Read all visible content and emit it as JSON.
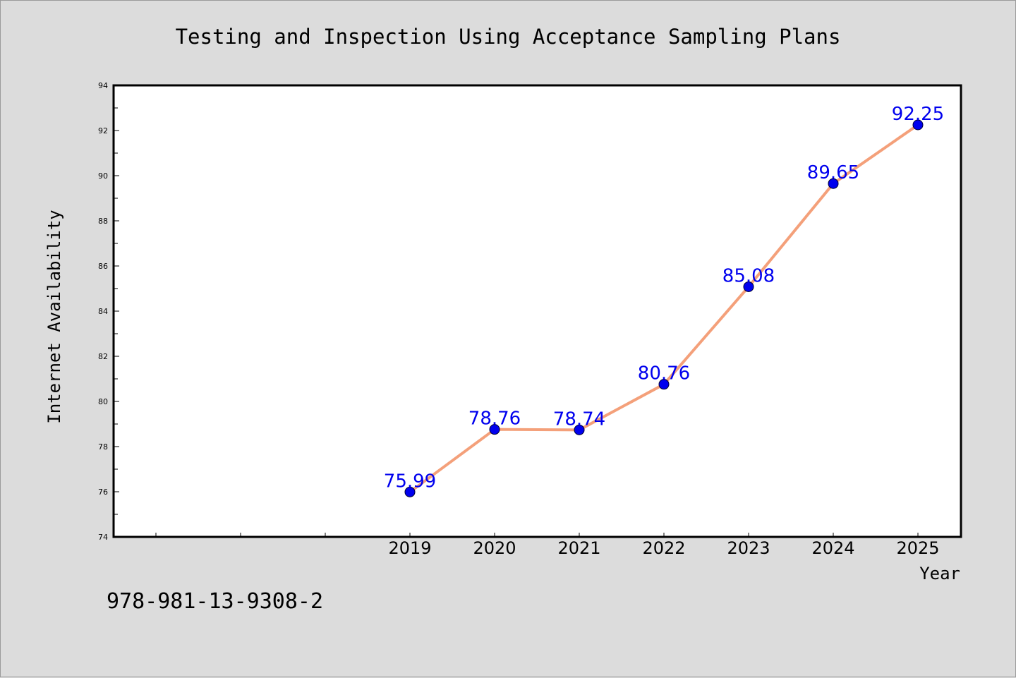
{
  "chart_data": {
    "type": "line",
    "title": "Testing and Inspection Using Acceptance Sampling Plans",
    "xlabel": "Year",
    "ylabel": "Internet Availability",
    "x": [
      "2019",
      "2020",
      "2021",
      "2022",
      "2023",
      "2024",
      "2025"
    ],
    "series": [
      {
        "values": [
          75.99,
          78.76,
          78.74,
          80.76,
          85.08,
          89.65,
          92.25
        ],
        "labels": [
          "75.99",
          "78.76",
          "78.74",
          "80.76",
          "85.08",
          "89.65",
          "92.25"
        ]
      }
    ],
    "ylim": [
      74,
      94
    ],
    "yticks": [
      74,
      76,
      78,
      80,
      82,
      84,
      86,
      88,
      90,
      92,
      94
    ],
    "line_color": "#f4a07a",
    "marker_color": "#0000ee",
    "label_color": "#0000ee",
    "grid": false,
    "legend": "none"
  },
  "footer": {
    "isbn": "978-981-13-9308-2"
  }
}
